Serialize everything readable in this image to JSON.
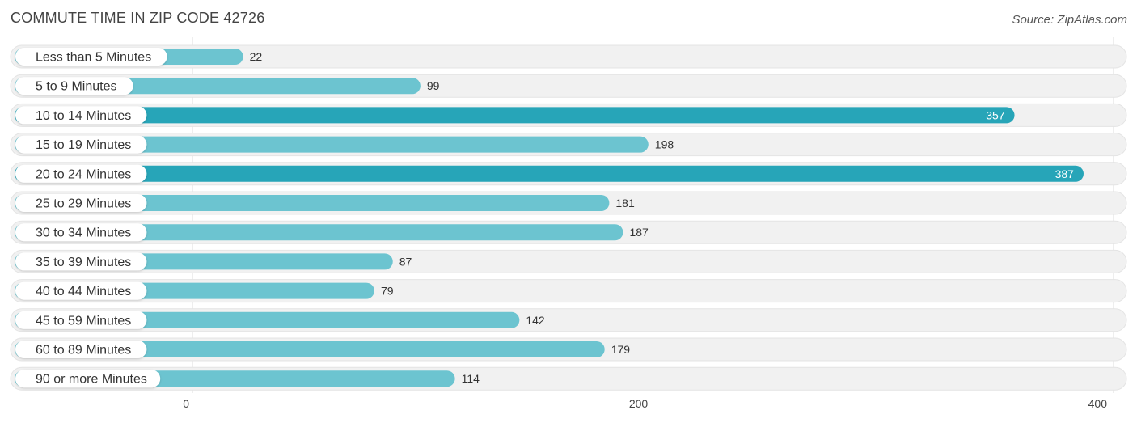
{
  "header": {
    "title": "COMMUTE TIME IN ZIP CODE 42726",
    "source": "Source: ZipAtlas.com"
  },
  "chart_data": {
    "type": "bar",
    "orientation": "horizontal",
    "title": "COMMUTE TIME IN ZIP CODE 42726",
    "categories": [
      "Less than 5 Minutes",
      "5 to 9 Minutes",
      "10 to 14 Minutes",
      "15 to 19 Minutes",
      "20 to 24 Minutes",
      "25 to 29 Minutes",
      "30 to 34 Minutes",
      "35 to 39 Minutes",
      "40 to 44 Minutes",
      "45 to 59 Minutes",
      "60 to 89 Minutes",
      "90 or more Minutes"
    ],
    "values": [
      22,
      99,
      357,
      198,
      387,
      181,
      187,
      87,
      79,
      142,
      179,
      114
    ],
    "xlim": [
      0,
      400
    ],
    "ticks": [
      0,
      200,
      400
    ],
    "grid": true,
    "colors": {
      "bar": "#6cc4d0",
      "bar_strong": "#27a5b8",
      "track": "#f1f1f1"
    }
  }
}
